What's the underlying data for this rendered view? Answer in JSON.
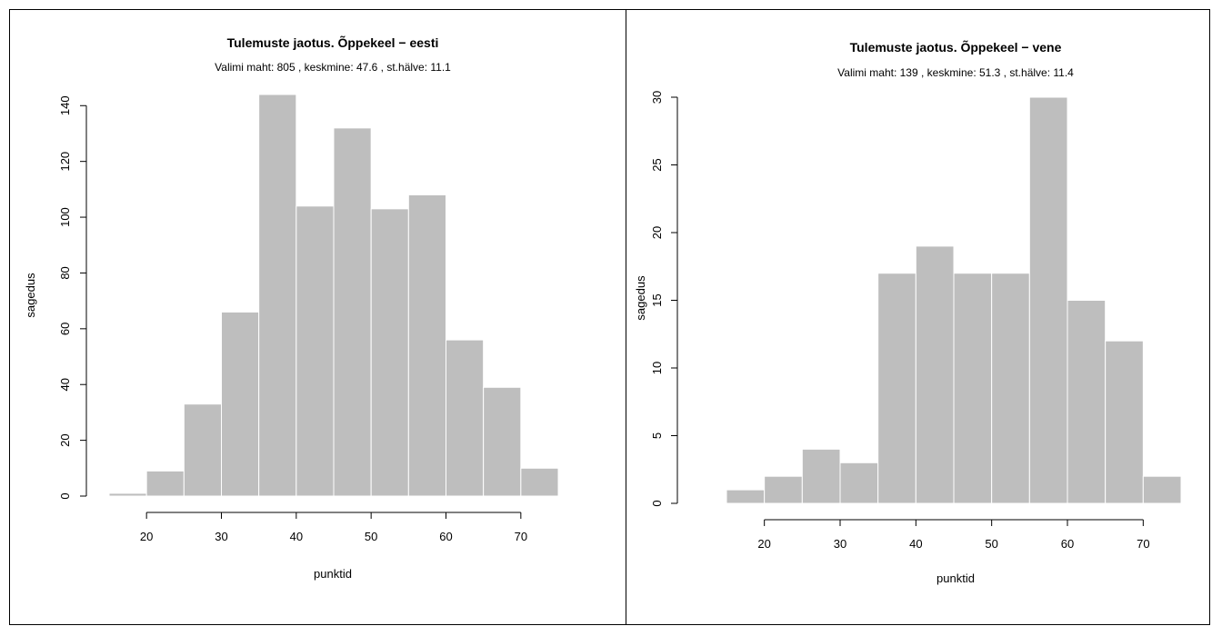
{
  "chart_data": [
    {
      "type": "bar",
      "title": "Tulemuste jaotus. Õppekeel − eesti",
      "subtitle": "Valimi maht: 805 , keskmine: 47.6 , st.hälve: 11.1",
      "xlabel": "punktid",
      "ylabel": "sagedus",
      "bins": [
        [
          15,
          20
        ],
        [
          20,
          25
        ],
        [
          25,
          30
        ],
        [
          30,
          35
        ],
        [
          35,
          40
        ],
        [
          40,
          45
        ],
        [
          45,
          50
        ],
        [
          50,
          55
        ],
        [
          55,
          60
        ],
        [
          60,
          65
        ],
        [
          65,
          70
        ],
        [
          70,
          75
        ]
      ],
      "values": [
        1,
        9,
        33,
        66,
        144,
        104,
        132,
        103,
        108,
        56,
        39,
        10
      ],
      "xticks": [
        20,
        30,
        40,
        50,
        60,
        70
      ],
      "yticks": [
        0,
        20,
        40,
        60,
        80,
        100,
        120,
        140
      ],
      "xlim": [
        15,
        75
      ],
      "ylim": [
        0,
        144
      ],
      "grid": false
    },
    {
      "type": "bar",
      "title": "Tulemuste jaotus. Õppekeel − vene",
      "subtitle": "Valimi maht: 139 , keskmine: 51.3 , st.hälve: 11.4",
      "xlabel": "punktid",
      "ylabel": "sagedus",
      "bins": [
        [
          15,
          20
        ],
        [
          20,
          25
        ],
        [
          25,
          30
        ],
        [
          30,
          35
        ],
        [
          35,
          40
        ],
        [
          40,
          45
        ],
        [
          45,
          50
        ],
        [
          50,
          55
        ],
        [
          55,
          60
        ],
        [
          60,
          65
        ],
        [
          65,
          70
        ],
        [
          70,
          75
        ]
      ],
      "values": [
        1,
        2,
        4,
        3,
        17,
        19,
        17,
        17,
        30,
        15,
        12,
        2
      ],
      "xticks": [
        20,
        30,
        40,
        50,
        60,
        70
      ],
      "yticks": [
        0,
        5,
        10,
        15,
        20,
        25,
        30
      ],
      "xlim": [
        15,
        75
      ],
      "ylim": [
        0,
        30
      ],
      "grid": false
    }
  ]
}
